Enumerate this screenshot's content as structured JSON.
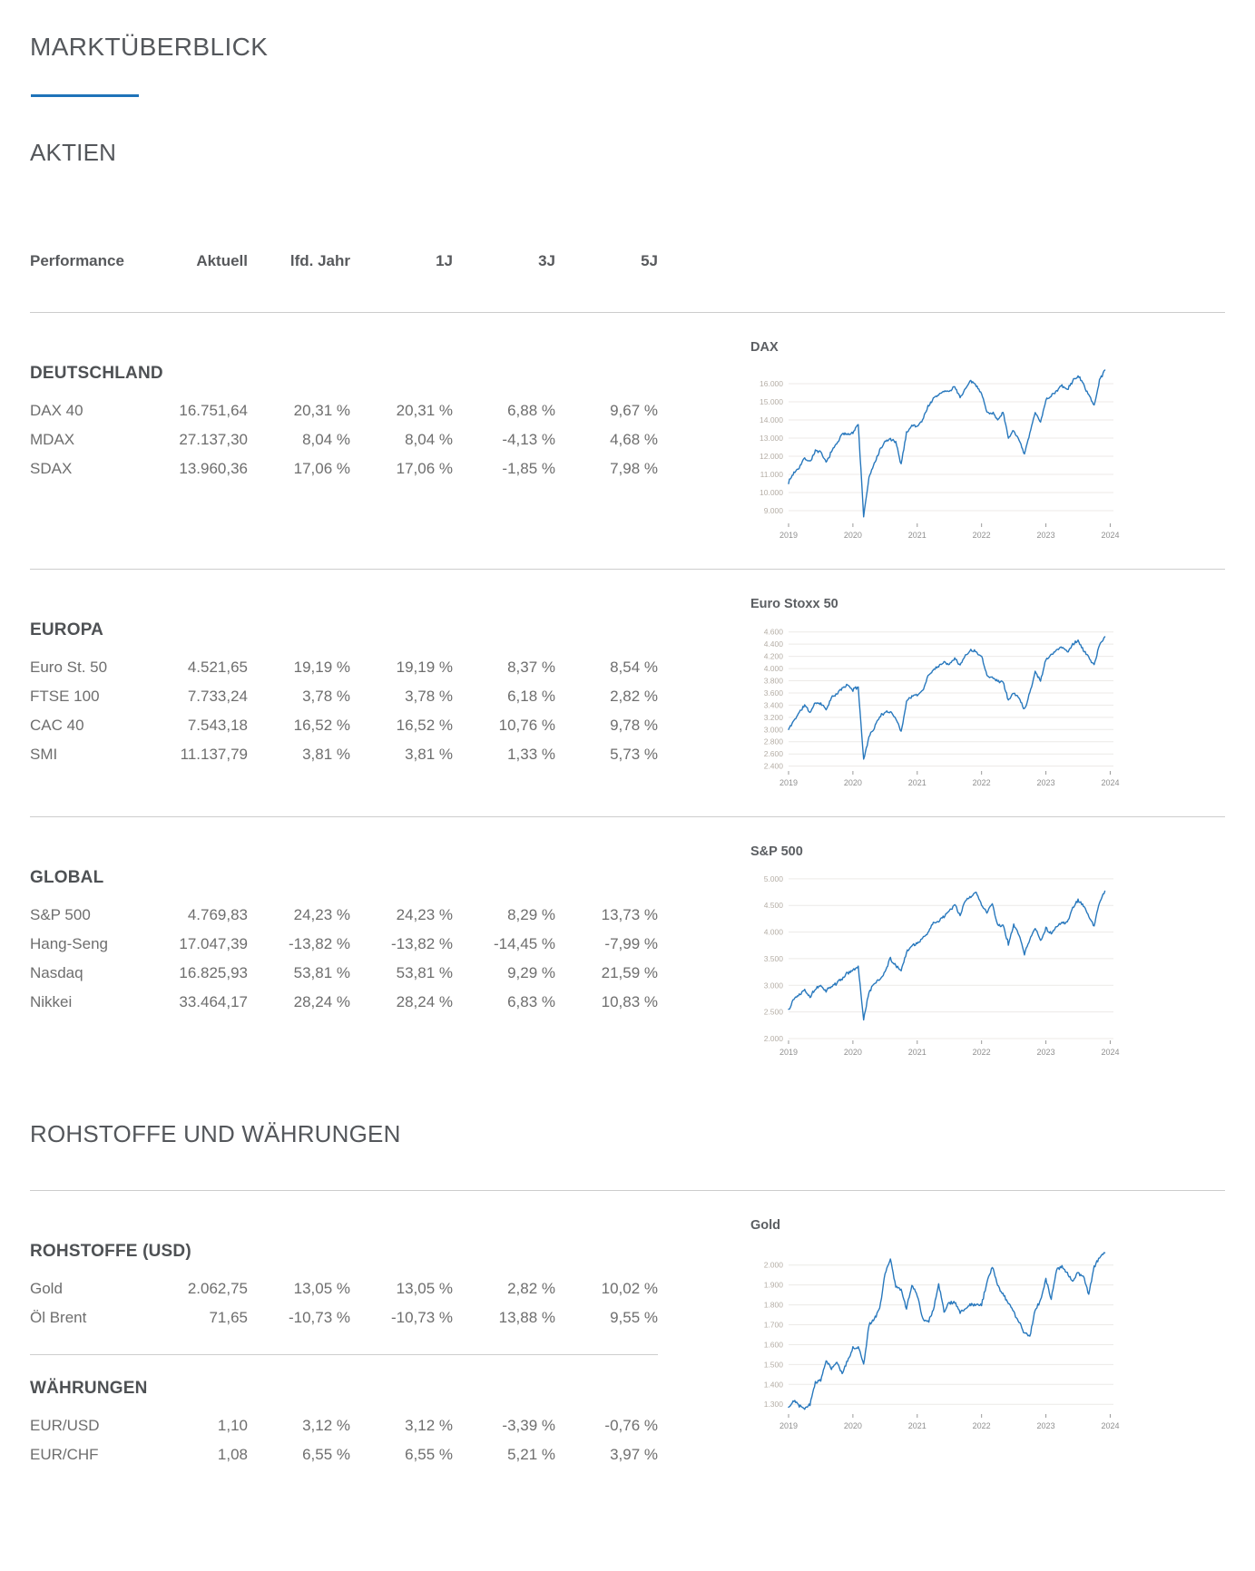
{
  "page": {
    "title": "MARKTÜBERBLICK",
    "aktien_title": "AKTIEN",
    "rohstoffe_title": "ROHSTOFFE UND WÄHRUNGEN"
  },
  "table_header": [
    "Performance",
    "Aktuell",
    "lfd. Jahr",
    "1J",
    "3J",
    "5J"
  ],
  "groups": [
    {
      "title": "DEUTSCHLAND",
      "rows": [
        [
          "DAX 40",
          "16.751,64",
          "20,31 %",
          "20,31 %",
          "6,88 %",
          "9,67 %"
        ],
        [
          "MDAX",
          "27.137,30",
          "8,04 %",
          "8,04 %",
          "-4,13 %",
          "4,68 %"
        ],
        [
          "SDAX",
          "13.960,36",
          "17,06 %",
          "17,06 %",
          "-1,85 %",
          "7,98 %"
        ]
      ]
    },
    {
      "title": "EUROPA",
      "rows": [
        [
          "Euro St. 50",
          "4.521,65",
          "19,19 %",
          "19,19 %",
          "8,37 %",
          "8,54 %"
        ],
        [
          "FTSE 100",
          "7.733,24",
          "3,78 %",
          "3,78 %",
          "6,18 %",
          "2,82 %"
        ],
        [
          "CAC 40",
          "7.543,18",
          "16,52 %",
          "16,52 %",
          "10,76 %",
          "9,78 %"
        ],
        [
          "SMI",
          "11.137,79",
          "3,81 %",
          "3,81 %",
          "1,33 %",
          "5,73 %"
        ]
      ]
    },
    {
      "title": "GLOBAL",
      "rows": [
        [
          "S&P 500",
          "4.769,83",
          "24,23 %",
          "24,23 %",
          "8,29 %",
          "13,73 %"
        ],
        [
          "Hang-Seng",
          "17.047,39",
          "-13,82 %",
          "-13,82 %",
          "-14,45 %",
          "-7,99 %"
        ],
        [
          "Nasdaq",
          "16.825,93",
          "53,81 %",
          "53,81 %",
          "9,29 %",
          "21,59 %"
        ],
        [
          "Nikkei",
          "33.464,17",
          "28,24 %",
          "28,24 %",
          "6,83 %",
          "10,83 %"
        ]
      ]
    },
    {
      "title": "ROHSTOFFE (USD)",
      "rows": [
        [
          "Gold",
          "2.062,75",
          "13,05 %",
          "13,05 %",
          "2,82 %",
          "10,02 %"
        ],
        [
          "Öl Brent",
          "71,65",
          "-10,73 %",
          "-10,73 %",
          "13,88 %",
          "9,55 %"
        ]
      ]
    },
    {
      "title": "WÄHRUNGEN",
      "rows": [
        [
          "EUR/USD",
          "1,10",
          "3,12 %",
          "3,12 %",
          "-3,39 %",
          "-0,76 %"
        ],
        [
          "EUR/CHF",
          "1,08",
          "6,55 %",
          "6,55 %",
          "5,21 %",
          "3,97 %"
        ]
      ]
    }
  ],
  "chart_data": [
    {
      "type": "line",
      "title": "DAX",
      "xlabel": "",
      "ylabel": "",
      "legend": "none",
      "grid": true,
      "x": {
        "start_year": 2019,
        "step": "month"
      },
      "values": [
        10580,
        11100,
        11400,
        11900,
        11700,
        12300,
        12200,
        11650,
        12250,
        12700,
        13200,
        13250,
        13300,
        13750,
        8700,
        10800,
        11600,
        12300,
        12800,
        12950,
        12750,
        11550,
        13300,
        13700,
        13650,
        14000,
        14750,
        15150,
        15400,
        15600,
        15550,
        15850,
        15250,
        15700,
        16150,
        15900,
        15500,
        14400,
        14400,
        14050,
        14400,
        13000,
        13450,
        12850,
        12100,
        13250,
        14400,
        13900,
        15100,
        15350,
        15600,
        15900,
        15650,
        16150,
        16450,
        15950,
        15400,
        14750,
        16200,
        16751
      ],
      "ylim": [
        8400,
        16800
      ],
      "xlim": [
        2019,
        2024.05
      ],
      "yticks": [
        9000,
        10000,
        11000,
        12000,
        13000,
        14000,
        15000,
        16000
      ],
      "ytick_labels": [
        "9.000",
        "10.000",
        "11.000",
        "12.000",
        "13.000",
        "14.000",
        "15.000",
        "16.000"
      ],
      "xticks": [
        2019,
        2020,
        2021,
        2022,
        2023,
        2024
      ],
      "xtick_labels": [
        "2019",
        "2020",
        "2021",
        "2022",
        "2023",
        "2024"
      ],
      "render": {
        "noise": 130,
        "seed": 7
      }
    },
    {
      "type": "line",
      "title": "Euro Stoxx 50",
      "xlabel": "",
      "ylabel": "",
      "legend": "none",
      "grid": true,
      "x": {
        "start_year": 2019,
        "step": "month"
      },
      "values": [
        3000,
        3150,
        3280,
        3400,
        3280,
        3440,
        3430,
        3330,
        3520,
        3580,
        3680,
        3730,
        3650,
        3700,
        2500,
        2890,
        3030,
        3220,
        3270,
        3300,
        3190,
        2960,
        3460,
        3550,
        3560,
        3640,
        3870,
        3980,
        4050,
        4100,
        4080,
        4180,
        4050,
        4220,
        4300,
        4280,
        4200,
        3900,
        3850,
        3800,
        3780,
        3480,
        3600,
        3520,
        3330,
        3600,
        3950,
        3800,
        4150,
        4230,
        4300,
        4360,
        4270,
        4400,
        4460,
        4300,
        4180,
        4060,
        4380,
        4521
      ],
      "ylim": [
        2350,
        4700
      ],
      "xlim": [
        2019,
        2024.05
      ],
      "yticks": [
        2400,
        2600,
        2800,
        3000,
        3200,
        3400,
        3600,
        3800,
        4000,
        4200,
        4400,
        4600
      ],
      "ytick_labels": [
        "2.400",
        "2.600",
        "2.800",
        "3.000",
        "3.200",
        "3.400",
        "3.600",
        "3.800",
        "4.000",
        "4.200",
        "4.400",
        "4.600"
      ],
      "xticks": [
        2019,
        2020,
        2021,
        2022,
        2023,
        2024
      ],
      "xtick_labels": [
        "2019",
        "2020",
        "2021",
        "2022",
        "2023",
        "2024"
      ],
      "render": {
        "noise": 38,
        "seed": 11
      }
    },
    {
      "type": "line",
      "title": "S&P 500",
      "xlabel": "",
      "ylabel": "",
      "legend": "none",
      "grid": true,
      "x": {
        "start_year": 2019,
        "step": "month"
      },
      "values": [
        2550,
        2750,
        2830,
        2930,
        2780,
        2940,
        2980,
        2900,
        2980,
        3040,
        3130,
        3230,
        3280,
        3340,
        2350,
        2870,
        3040,
        3100,
        3270,
        3500,
        3360,
        3270,
        3620,
        3750,
        3780,
        3900,
        3970,
        4180,
        4200,
        4300,
        4400,
        4520,
        4300,
        4600,
        4660,
        4770,
        4500,
        4370,
        4530,
        4130,
        4130,
        3780,
        4130,
        3950,
        3580,
        3870,
        4080,
        3840,
        4070,
        3970,
        4100,
        4170,
        4180,
        4450,
        4590,
        4500,
        4280,
        4120,
        4560,
        4769
      ],
      "ylim": [
        2000,
        5100
      ],
      "xlim": [
        2019,
        2024.05
      ],
      "yticks": [
        2000,
        2500,
        3000,
        3500,
        4000,
        4500,
        5000
      ],
      "ytick_labels": [
        "2.000",
        "2.500",
        "3.000",
        "3.500",
        "4.000",
        "4.500",
        "5.000"
      ],
      "xticks": [
        2019,
        2020,
        2021,
        2022,
        2023,
        2024
      ],
      "xtick_labels": [
        "2019",
        "2020",
        "2021",
        "2022",
        "2023",
        "2024"
      ],
      "render": {
        "noise": 45,
        "seed": 13
      }
    },
    {
      "type": "line",
      "title": "Gold",
      "xlabel": "",
      "ylabel": "",
      "legend": "none",
      "grid": true,
      "x": {
        "start_year": 2019,
        "step": "month"
      },
      "values": [
        1285,
        1320,
        1295,
        1280,
        1300,
        1410,
        1420,
        1520,
        1480,
        1510,
        1460,
        1520,
        1580,
        1590,
        1500,
        1700,
        1730,
        1780,
        1960,
        2030,
        1890,
        1880,
        1780,
        1900,
        1850,
        1730,
        1710,
        1770,
        1900,
        1770,
        1810,
        1815,
        1760,
        1780,
        1800,
        1800,
        1800,
        1910,
        1990,
        1900,
        1850,
        1810,
        1760,
        1710,
        1660,
        1640,
        1770,
        1820,
        1930,
        1830,
        1980,
        1990,
        1960,
        1920,
        1960,
        1940,
        1850,
        1990,
        2040,
        2062
      ],
      "ylim": [
        1260,
        2090
      ],
      "xlim": [
        2019,
        2024.05
      ],
      "yticks": [
        1300,
        1400,
        1500,
        1600,
        1700,
        1800,
        1900,
        2000
      ],
      "ytick_labels": [
        "1.300",
        "1.400",
        "1.500",
        "1.600",
        "1.700",
        "1.800",
        "1.900",
        "2.000"
      ],
      "xticks": [
        2019,
        2020,
        2021,
        2022,
        2023,
        2024
      ],
      "xtick_labels": [
        "2019",
        "2020",
        "2021",
        "2022",
        "2023",
        "2024"
      ],
      "render": {
        "noise": 14,
        "seed": 17
      }
    }
  ],
  "colors": {
    "accent": "#1e73b9",
    "line": "#2878bd",
    "grid": "#eceae7",
    "ytick_text": "#b5aea6",
    "xtick_text": "#8f8f8f",
    "tick_mark": "#9a9a9a",
    "divider": "#cdcdcd",
    "heading": "#54575b",
    "row_text": "#6e6e6e"
  }
}
